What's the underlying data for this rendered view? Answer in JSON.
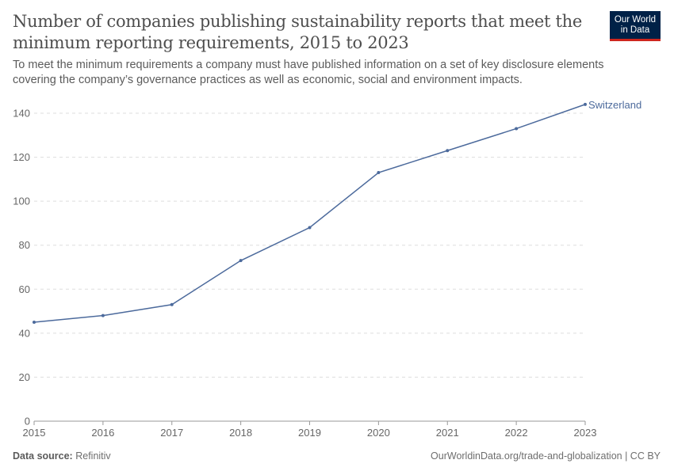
{
  "title": "Number of companies publishing sustainability reports that meet the minimum reporting requirements, 2015 to 2023",
  "subtitle": "To meet the minimum requirements a company must have published information on a set of key disclosure elements covering the company’s governance practices as well as economic, social and environment impacts.",
  "logo": {
    "line1": "Our World",
    "line2": "in Data"
  },
  "footer": {
    "source_label": "Data source:",
    "source": "Refinitiv",
    "url": "OurWorldinData.org/trade-and-globalization | CC BY"
  },
  "colors": {
    "series": "#4c6a9c",
    "grid": "#dddddd",
    "axis": "#666666"
  },
  "chart_data": {
    "type": "line",
    "x": [
      2015,
      2016,
      2017,
      2018,
      2019,
      2020,
      2021,
      2022,
      2023
    ],
    "series": [
      {
        "name": "Switzerland",
        "values": [
          45,
          48,
          53,
          73,
          88,
          113,
          123,
          133,
          144
        ]
      }
    ],
    "ylim": [
      0,
      140
    ],
    "yticks": [
      0,
      20,
      40,
      60,
      80,
      100,
      120,
      140
    ],
    "xticks": [
      "2015",
      "2016",
      "2017",
      "2018",
      "2019",
      "2020",
      "2021",
      "2022",
      "2023"
    ],
    "grid": true,
    "legend": "end-of-line label"
  }
}
